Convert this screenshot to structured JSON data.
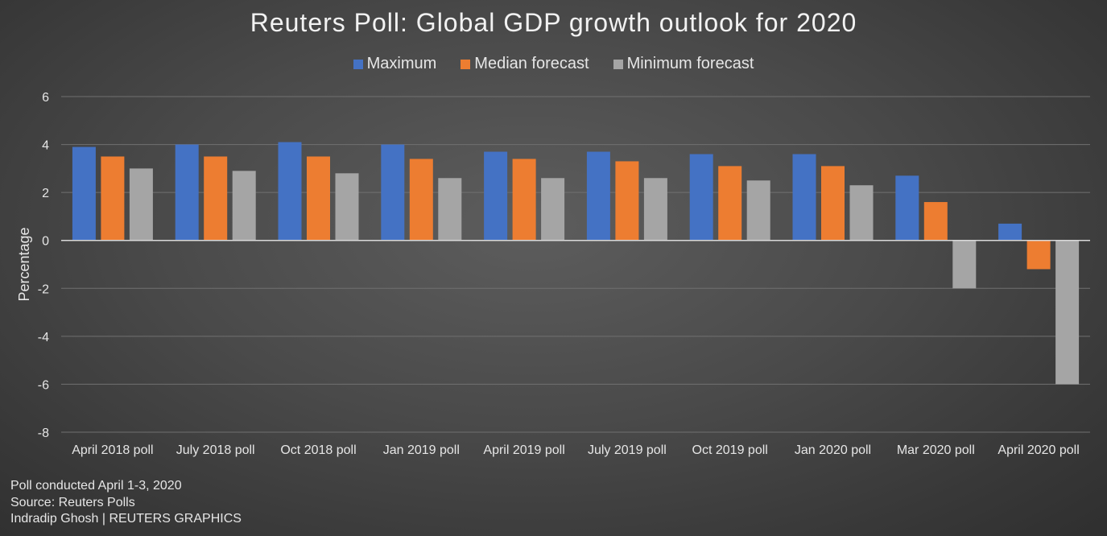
{
  "chart_data": {
    "type": "bar",
    "title": "Reuters Poll: Global GDP growth outlook for 2020",
    "xlabel": "",
    "ylabel": "Percentage",
    "ylim": [
      -8,
      6
    ],
    "yticks": [
      6,
      4,
      2,
      0,
      -2,
      -4,
      -6,
      -8
    ],
    "grid": true,
    "legend_position": "top",
    "categories": [
      "April 2018 poll",
      "July 2018 poll",
      "Oct 2018 poll",
      "Jan 2019 poll",
      "April 2019 poll",
      "July 2019 poll",
      "Oct 2019 poll",
      "Jan 2020 poll",
      "Mar 2020 poll",
      "April 2020 poll"
    ],
    "series": [
      {
        "name": "Maximum",
        "color": "#4472c4",
        "values": [
          3.9,
          4.0,
          4.1,
          4.0,
          3.7,
          3.7,
          3.6,
          3.6,
          2.7,
          0.7
        ]
      },
      {
        "name": "Median forecast",
        "color": "#ed7d31",
        "values": [
          3.5,
          3.5,
          3.5,
          3.4,
          3.4,
          3.3,
          3.1,
          3.1,
          1.6,
          -1.2
        ]
      },
      {
        "name": "Minimum forecast",
        "color": "#a5a5a5",
        "values": [
          3.0,
          2.9,
          2.8,
          2.6,
          2.6,
          2.6,
          2.5,
          2.3,
          -2.0,
          -6.0
        ]
      }
    ]
  },
  "notes": {
    "line1": "Poll conducted April 1-3, 2020",
    "line2": "Source: Reuters Polls",
    "line3": "Indradip Ghosh | REUTERS GRAPHICS"
  }
}
